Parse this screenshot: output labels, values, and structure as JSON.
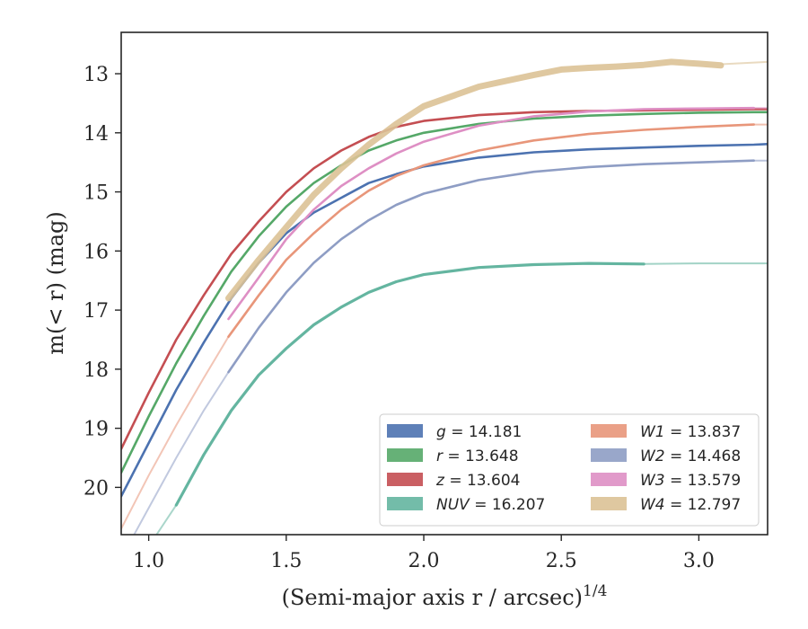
{
  "chart_data": {
    "type": "line",
    "xlabel": "(Semi-major axis r / arcsec)",
    "xlabel_exponent": "1/4",
    "ylabel": "m(< r) (mag)",
    "xlim": [
      0.9,
      3.25
    ],
    "ylim": [
      20.8,
      12.3
    ],
    "y_inverted": true,
    "grid": false,
    "legend_position": "lower-right",
    "x_ticks": [
      1.0,
      1.5,
      2.0,
      2.5,
      3.0
    ],
    "x_tick_labels": [
      "1.0",
      "1.5",
      "2.0",
      "2.5",
      "3.0"
    ],
    "y_ticks": [
      13,
      14,
      15,
      16,
      17,
      18,
      19,
      20
    ],
    "y_tick_labels": [
      "13",
      "14",
      "15",
      "16",
      "17",
      "18",
      "19",
      "20"
    ],
    "series": [
      {
        "name": "g = 14.181",
        "label_var": "g",
        "label_value": "14.181",
        "color": "#4c72b0",
        "points": [
          [
            0.9,
            20.15
          ],
          [
            1.0,
            19.25
          ],
          [
            1.1,
            18.35
          ],
          [
            1.2,
            17.55
          ],
          [
            1.3,
            16.8
          ],
          [
            1.4,
            16.2
          ],
          [
            1.5,
            15.7
          ],
          [
            1.6,
            15.35
          ],
          [
            1.7,
            15.1
          ],
          [
            1.8,
            14.85
          ],
          [
            1.9,
            14.7
          ],
          [
            2.0,
            14.57
          ],
          [
            2.2,
            14.42
          ],
          [
            2.4,
            14.33
          ],
          [
            2.6,
            14.28
          ],
          [
            2.8,
            14.25
          ],
          [
            3.0,
            14.22
          ],
          [
            3.2,
            14.2
          ],
          [
            3.25,
            14.19
          ]
        ],
        "extension": [
          [
            0.9,
            20.15
          ],
          [
            0.94,
            19.8
          ]
        ]
      },
      {
        "name": "r = 13.648",
        "label_var": "r",
        "label_value": "13.648",
        "color": "#55a868",
        "points": [
          [
            0.9,
            19.75
          ],
          [
            1.0,
            18.8
          ],
          [
            1.1,
            17.9
          ],
          [
            1.2,
            17.1
          ],
          [
            1.3,
            16.35
          ],
          [
            1.4,
            15.75
          ],
          [
            1.5,
            15.25
          ],
          [
            1.6,
            14.85
          ],
          [
            1.7,
            14.55
          ],
          [
            1.8,
            14.3
          ],
          [
            1.9,
            14.13
          ],
          [
            2.0,
            14.0
          ],
          [
            2.2,
            13.85
          ],
          [
            2.4,
            13.76
          ],
          [
            2.6,
            13.71
          ],
          [
            2.8,
            13.68
          ],
          [
            3.0,
            13.66
          ],
          [
            3.2,
            13.65
          ],
          [
            3.25,
            13.65
          ]
        ],
        "extension": []
      },
      {
        "name": "z = 13.604",
        "label_var": "z",
        "label_value": "13.604",
        "color": "#c44e52",
        "points": [
          [
            0.9,
            19.35
          ],
          [
            1.0,
            18.4
          ],
          [
            1.1,
            17.5
          ],
          [
            1.2,
            16.75
          ],
          [
            1.3,
            16.05
          ],
          [
            1.4,
            15.5
          ],
          [
            1.5,
            15.0
          ],
          [
            1.6,
            14.6
          ],
          [
            1.7,
            14.3
          ],
          [
            1.8,
            14.07
          ],
          [
            1.9,
            13.9
          ],
          [
            2.0,
            13.8
          ],
          [
            2.2,
            13.7
          ],
          [
            2.4,
            13.65
          ],
          [
            2.6,
            13.63
          ],
          [
            2.8,
            13.62
          ],
          [
            3.0,
            13.61
          ],
          [
            3.2,
            13.6
          ],
          [
            3.25,
            13.6
          ]
        ],
        "extension": []
      },
      {
        "name": "NUV = 16.207",
        "label_var": "NUV",
        "label_value": "16.207",
        "color": "#64b5a0",
        "points": [
          [
            1.1,
            20.3
          ],
          [
            1.2,
            19.45
          ],
          [
            1.3,
            18.7
          ],
          [
            1.4,
            18.1
          ],
          [
            1.5,
            17.65
          ],
          [
            1.6,
            17.25
          ],
          [
            1.7,
            16.95
          ],
          [
            1.8,
            16.7
          ],
          [
            1.9,
            16.52
          ],
          [
            2.0,
            16.4
          ],
          [
            2.2,
            16.28
          ],
          [
            2.4,
            16.23
          ],
          [
            2.6,
            16.21
          ],
          [
            2.8,
            16.22
          ]
        ],
        "extension": [
          [
            0.9,
            21.7
          ],
          [
            1.0,
            21.0
          ],
          [
            1.1,
            20.3
          ]
        ],
        "tail": [
          [
            2.8,
            16.22
          ],
          [
            3.0,
            16.21
          ],
          [
            3.25,
            16.21
          ]
        ]
      },
      {
        "name": "W1 = 13.837",
        "label_var": "W1",
        "label_value": "13.837",
        "color": "#e8967a",
        "points": [
          [
            1.29,
            17.45
          ],
          [
            1.4,
            16.75
          ],
          [
            1.5,
            16.15
          ],
          [
            1.6,
            15.7
          ],
          [
            1.7,
            15.3
          ],
          [
            1.8,
            14.98
          ],
          [
            1.9,
            14.73
          ],
          [
            2.0,
            14.55
          ],
          [
            2.2,
            14.3
          ],
          [
            2.4,
            14.13
          ],
          [
            2.6,
            14.02
          ],
          [
            2.8,
            13.95
          ],
          [
            3.0,
            13.9
          ],
          [
            3.2,
            13.86
          ]
        ],
        "extension": [
          [
            0.9,
            20.7
          ],
          [
            1.0,
            19.8
          ],
          [
            1.1,
            18.95
          ],
          [
            1.2,
            18.15
          ],
          [
            1.29,
            17.45
          ]
        ],
        "tail": [
          [
            3.2,
            13.86
          ],
          [
            3.25,
            13.86
          ]
        ]
      },
      {
        "name": "W2 = 14.468",
        "label_var": "W2",
        "label_value": "14.468",
        "color": "#8e9dc4",
        "points": [
          [
            1.29,
            18.05
          ],
          [
            1.4,
            17.3
          ],
          [
            1.5,
            16.7
          ],
          [
            1.6,
            16.2
          ],
          [
            1.7,
            15.8
          ],
          [
            1.8,
            15.48
          ],
          [
            1.9,
            15.22
          ],
          [
            2.0,
            15.03
          ],
          [
            2.2,
            14.8
          ],
          [
            2.4,
            14.66
          ],
          [
            2.6,
            14.58
          ],
          [
            2.8,
            14.53
          ],
          [
            3.0,
            14.5
          ],
          [
            3.2,
            14.47
          ]
        ],
        "extension": [
          [
            0.9,
            21.2
          ],
          [
            1.0,
            20.35
          ],
          [
            1.1,
            19.5
          ],
          [
            1.2,
            18.7
          ],
          [
            1.29,
            18.05
          ]
        ],
        "tail": [
          [
            3.2,
            14.47
          ],
          [
            3.25,
            14.47
          ]
        ]
      },
      {
        "name": "W3 = 13.579",
        "label_var": "W3",
        "label_value": "13.579",
        "color": "#de8fc4",
        "points": [
          [
            1.29,
            17.15
          ],
          [
            1.4,
            16.45
          ],
          [
            1.5,
            15.8
          ],
          [
            1.6,
            15.3
          ],
          [
            1.7,
            14.9
          ],
          [
            1.8,
            14.6
          ],
          [
            1.9,
            14.35
          ],
          [
            2.0,
            14.15
          ],
          [
            2.2,
            13.88
          ],
          [
            2.4,
            13.72
          ],
          [
            2.6,
            13.64
          ],
          [
            2.8,
            13.6
          ],
          [
            3.0,
            13.59
          ],
          [
            3.2,
            13.58
          ]
        ],
        "extension": [],
        "tail": [
          [
            3.2,
            13.58
          ],
          [
            3.25,
            13.58
          ]
        ]
      },
      {
        "name": "W4 = 12.797",
        "label_var": "W4",
        "label_value": "12.797",
        "color": "#dbc296",
        "points": [
          [
            1.29,
            16.8
          ],
          [
            1.4,
            16.15
          ],
          [
            1.5,
            15.6
          ],
          [
            1.6,
            15.05
          ],
          [
            1.7,
            14.6
          ],
          [
            1.8,
            14.2
          ],
          [
            1.9,
            13.85
          ],
          [
            2.0,
            13.55
          ],
          [
            2.2,
            13.22
          ],
          [
            2.4,
            13.02
          ],
          [
            2.5,
            12.93
          ],
          [
            2.6,
            12.9
          ],
          [
            2.7,
            12.88
          ],
          [
            2.8,
            12.85
          ],
          [
            2.9,
            12.8
          ],
          [
            3.0,
            12.83
          ],
          [
            3.08,
            12.86
          ]
        ],
        "extension": [],
        "tail": [
          [
            3.08,
            12.84
          ],
          [
            3.25,
            12.8
          ]
        ]
      }
    ]
  }
}
